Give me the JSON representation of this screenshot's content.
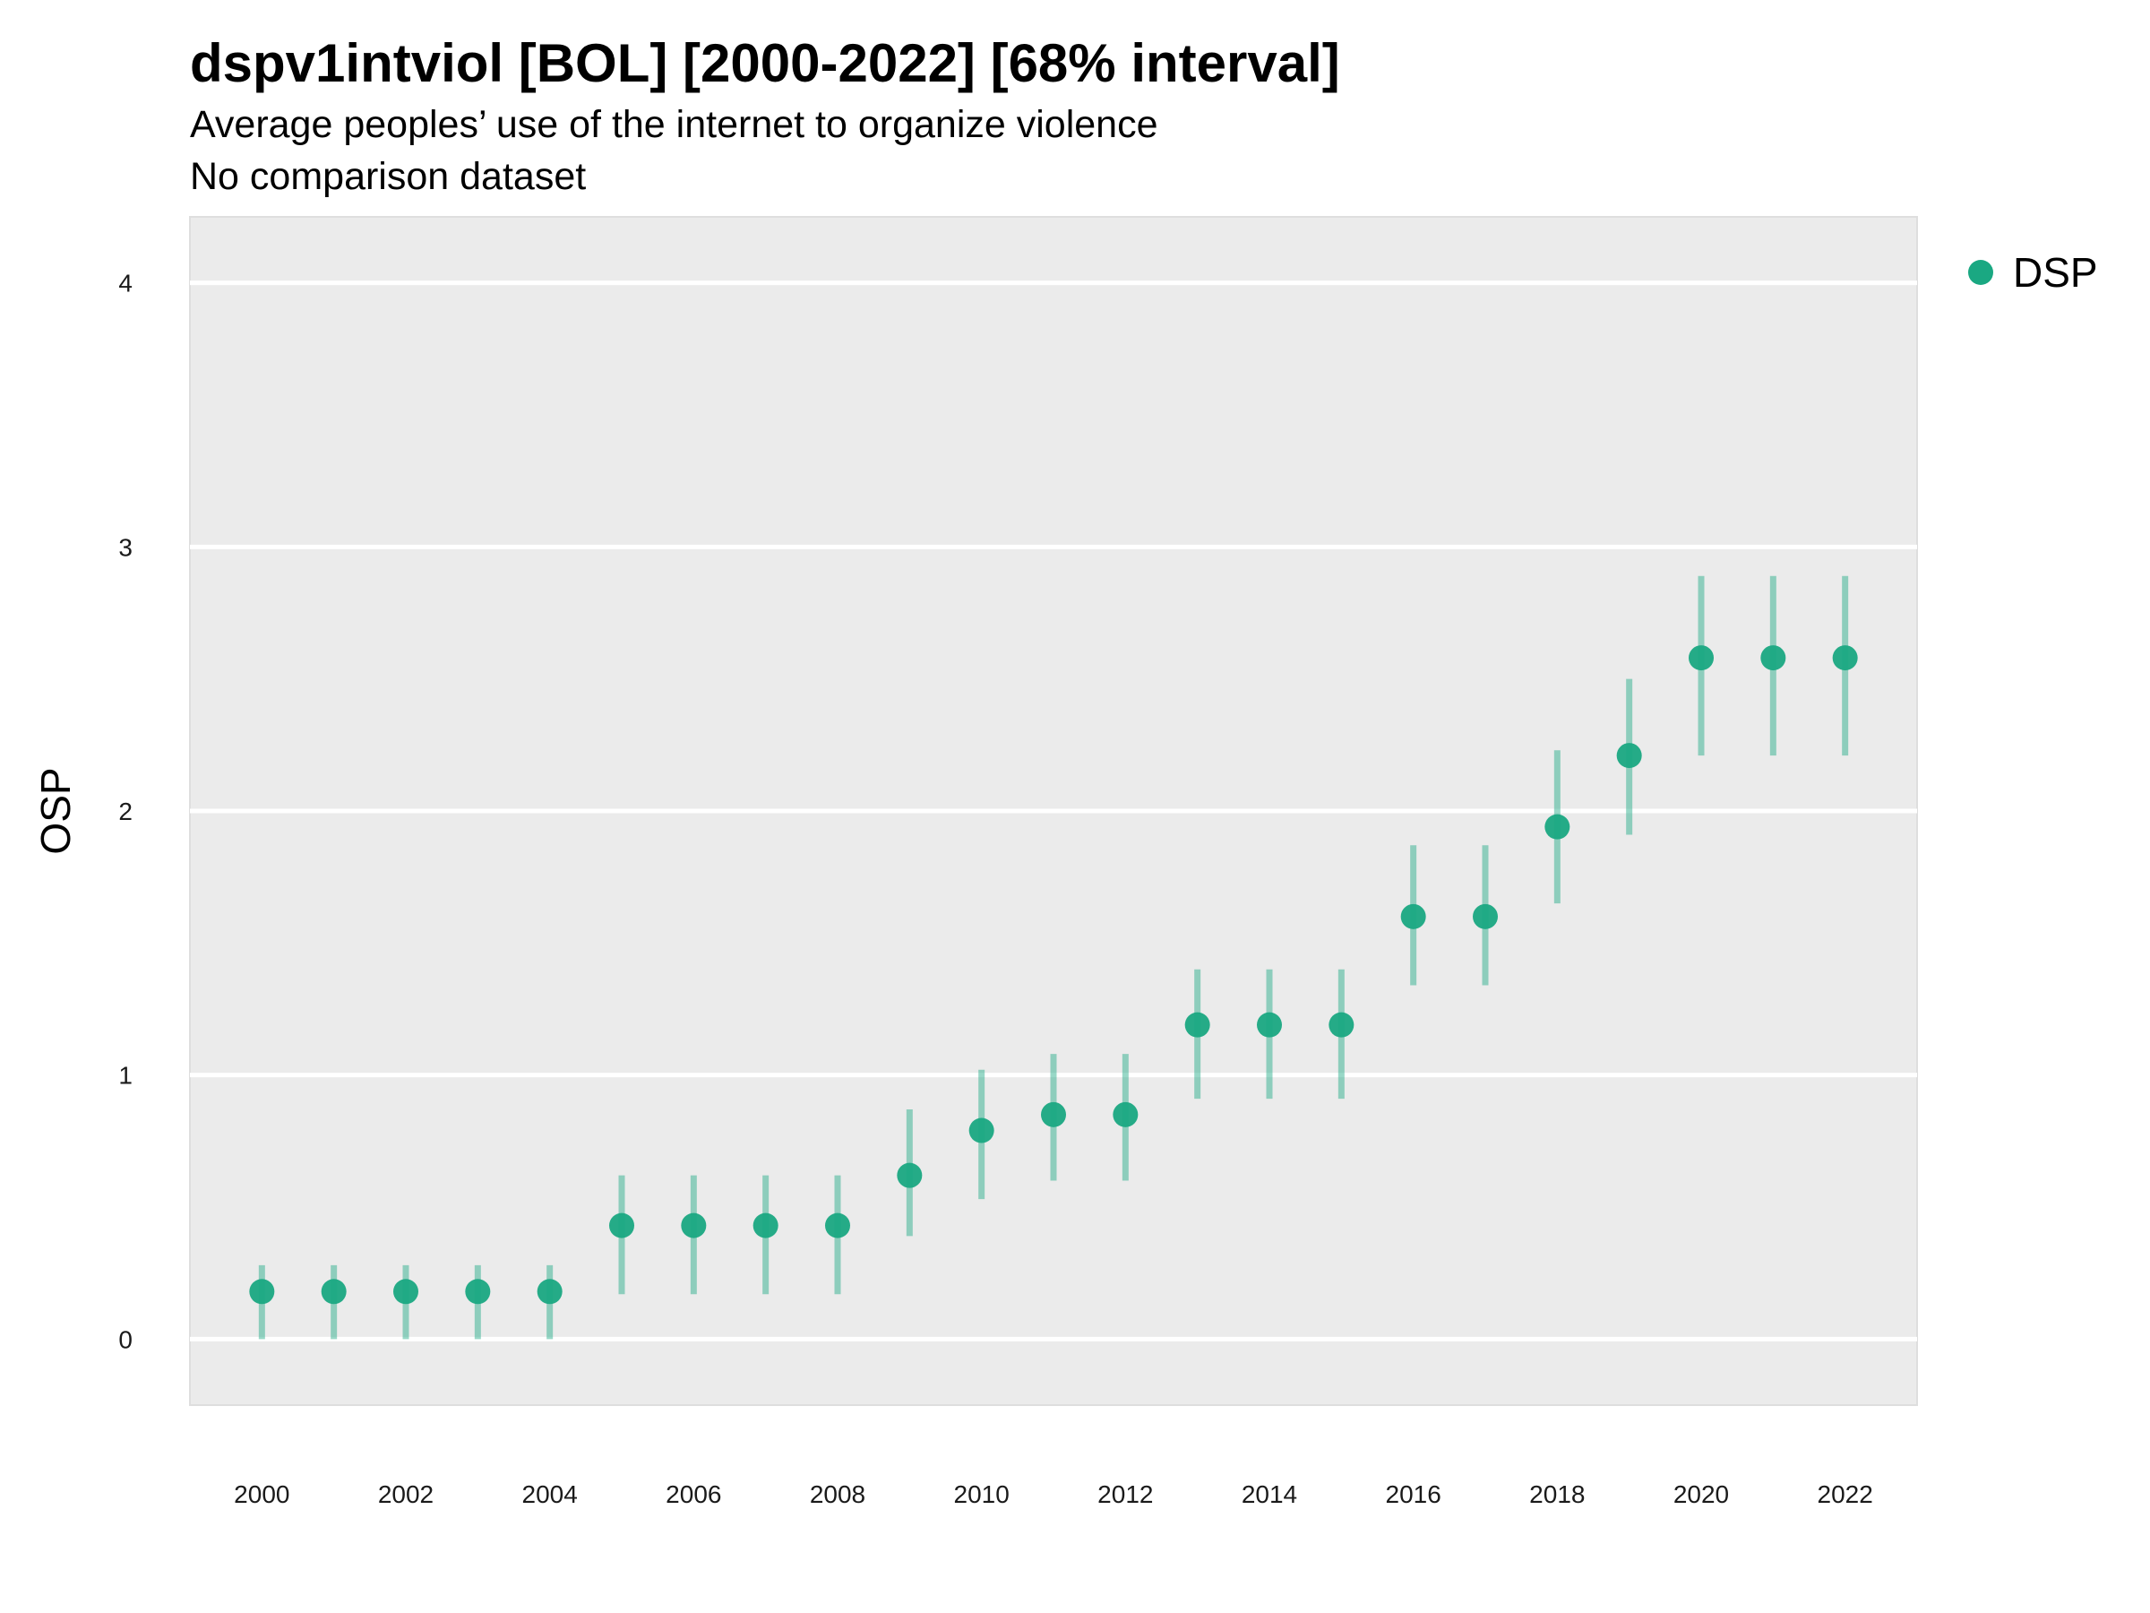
{
  "chart_data": {
    "type": "scatter",
    "title": "dspv1intviol [BOL] [2000-2022] [68% interval]",
    "subtitle": "Average peoples’ use of the internet to organize violence",
    "subtitle2": "No comparison dataset",
    "xlabel": "",
    "ylabel": "OSP",
    "ylim": [
      -0.25,
      4.25
    ],
    "xlim": [
      1999,
      2023
    ],
    "y_ticks": [
      0,
      1,
      2,
      3,
      4
    ],
    "x_ticks": [
      2000,
      2002,
      2004,
      2006,
      2008,
      2010,
      2012,
      2014,
      2016,
      2018,
      2020,
      2022
    ],
    "grid": true,
    "legend_position": "right",
    "series": [
      {
        "name": "DSP",
        "color": "#1aa882",
        "x": [
          2000,
          2001,
          2002,
          2003,
          2004,
          2005,
          2006,
          2007,
          2008,
          2009,
          2010,
          2011,
          2012,
          2013,
          2014,
          2015,
          2016,
          2017,
          2018,
          2019,
          2020,
          2021,
          2022
        ],
        "y": [
          0.18,
          0.18,
          0.18,
          0.18,
          0.18,
          0.43,
          0.43,
          0.43,
          0.43,
          0.62,
          0.79,
          0.85,
          0.85,
          1.19,
          1.19,
          1.19,
          1.6,
          1.6,
          1.94,
          2.21,
          2.58,
          2.58,
          2.58
        ],
        "lower": [
          0.0,
          0.0,
          0.0,
          0.0,
          0.0,
          0.17,
          0.17,
          0.17,
          0.17,
          0.39,
          0.53,
          0.6,
          0.6,
          0.91,
          0.91,
          0.91,
          1.34,
          1.34,
          1.65,
          1.91,
          2.21,
          2.21,
          2.21
        ],
        "upper": [
          0.28,
          0.28,
          0.28,
          0.28,
          0.28,
          0.62,
          0.62,
          0.62,
          0.62,
          0.87,
          1.02,
          1.08,
          1.08,
          1.4,
          1.4,
          1.4,
          1.87,
          1.87,
          2.23,
          2.5,
          2.89,
          2.89,
          2.89
        ]
      }
    ]
  }
}
